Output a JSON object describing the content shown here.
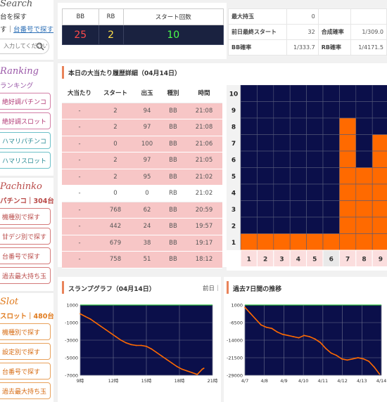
{
  "sidebar": {
    "search_title": "Search",
    "search_subtitle": "台を探す",
    "search_links": [
      "台番号で探す"
    ],
    "search_links_prefix": "す｜",
    "search_placeholder": "入力してください",
    "ranking_title": "Ranking",
    "ranking_subtitle": "ランキング",
    "ranking_buttons": [
      "絶好調パチンコ",
      "絶好調スロット",
      "ハマリパチンコ",
      "ハマリスロット"
    ],
    "pachinko_title": "Pachinko",
    "pachinko_count_label": "パチンコ｜304台",
    "pachinko_buttons": [
      "機種別で探す",
      "甘デジ別で探す",
      "台番号で探す",
      "過去最大持ち玉"
    ],
    "slot_title": "Slot",
    "slot_count_label": "スロット｜480台",
    "slot_buttons": [
      "機種別で探す",
      "設定別で探す",
      "台番号で探す",
      "過去最大持ち玉"
    ]
  },
  "summary": {
    "headers": [
      "BB",
      "RB",
      "スタート回数"
    ],
    "bb": "25",
    "rb": "2",
    "start": "10"
  },
  "stats": {
    "rows": [
      {
        "label": "最大持玉",
        "value": "0",
        "label2": "",
        "value2": ""
      },
      {
        "label": "前日最終スタート",
        "value": "32",
        "label2": "合成確率",
        "value2": "1/309.0"
      },
      {
        "label": "BB確率",
        "value": "1/333.7",
        "label2": "RB確率",
        "value2": "1/4171.5"
      }
    ]
  },
  "history": {
    "title": "本日の大当たり履歴詳細（04月14日）",
    "headers": [
      "大当たり",
      "スタート",
      "出玉",
      "種別",
      "時間"
    ],
    "rows": [
      {
        "n": "-",
        "start": "2",
        "out": "94",
        "type": "BB",
        "time": "21:08"
      },
      {
        "n": "-",
        "start": "2",
        "out": "97",
        "type": "BB",
        "time": "21:08"
      },
      {
        "n": "-",
        "start": "0",
        "out": "100",
        "type": "BB",
        "time": "21:06"
      },
      {
        "n": "-",
        "start": "2",
        "out": "97",
        "type": "BB",
        "time": "21:05"
      },
      {
        "n": "-",
        "start": "2",
        "out": "95",
        "type": "BB",
        "time": "21:02"
      },
      {
        "n": "-",
        "start": "0",
        "out": "0",
        "type": "RB",
        "time": "21:02"
      },
      {
        "n": "-",
        "start": "768",
        "out": "62",
        "type": "BB",
        "time": "20:59"
      },
      {
        "n": "-",
        "start": "442",
        "out": "24",
        "type": "BB",
        "time": "19:57"
      },
      {
        "n": "-",
        "start": "679",
        "out": "38",
        "type": "BB",
        "time": "19:17"
      },
      {
        "n": "-",
        "start": "758",
        "out": "51",
        "type": "BB",
        "time": "18:12"
      }
    ]
  },
  "bar_grid": {
    "y_labels": [
      "10",
      "9",
      "8",
      "7",
      "6",
      "5",
      "4",
      "3",
      "2",
      "1"
    ],
    "x_labels": [
      "1",
      "2",
      "3",
      "4",
      "5",
      "6",
      "7",
      "8",
      "9"
    ],
    "highlight_x": "6",
    "levels": [
      1,
      1,
      1,
      1,
      1,
      1,
      8,
      5,
      7
    ],
    "fill_color": "#ff6a00",
    "empty_color": "#0b0f4a"
  },
  "slump": {
    "title": "スランプグラフ（04月14日）",
    "nav_label": "前日｜"
  },
  "week": {
    "title": "過去7日間の推移"
  },
  "chart_data": [
    {
      "type": "line",
      "title": "スランプグラフ（04月14日）",
      "x_ticks": [
        "9時",
        "12時",
        "15時",
        "18時",
        "21時"
      ],
      "y_ticks": [
        "1000",
        "-1000",
        "-3000",
        "-5000",
        "-7000"
      ],
      "ylim": [
        -7000,
        1000
      ],
      "color": "#ff6a00",
      "x": [
        9.0,
        9.5,
        10.0,
        10.5,
        11.0,
        11.5,
        12.0,
        12.5,
        13.0,
        13.5,
        14.0,
        14.5,
        15.0,
        15.5,
        16.0,
        16.5,
        17.0,
        17.5,
        18.0,
        18.5,
        19.0,
        19.5,
        20.0,
        20.5,
        21.0,
        21.15
      ],
      "y": [
        0,
        -300,
        -600,
        -1000,
        -1400,
        -1800,
        -2200,
        -2600,
        -3000,
        -3300,
        -3500,
        -3600,
        -3600,
        -3700,
        -4000,
        -4400,
        -4800,
        -5200,
        -5600,
        -6000,
        -6300,
        -6500,
        -6700,
        -6900,
        -6300,
        -6200
      ]
    },
    {
      "type": "line",
      "title": "過去7日間の推移",
      "x_ticks": [
        "4/7",
        "4/8",
        "4/9",
        "4/10",
        "4/11",
        "4/12",
        "4/13",
        "4/14"
      ],
      "y_ticks": [
        "1000",
        "-6500",
        "-14000",
        "-21500",
        "-29000"
      ],
      "ylim": [
        -29000,
        1000
      ],
      "color": "#ff6a00",
      "x": [
        0.0,
        0.3,
        0.6,
        0.9,
        1.2,
        1.5,
        1.8,
        2.1,
        2.4,
        2.7,
        3.0,
        3.3,
        3.6,
        3.9,
        4.2,
        4.5,
        4.8,
        5.1,
        5.4,
        5.7,
        6.0,
        6.3,
        6.6,
        6.9,
        7.2,
        7.5
      ],
      "y": [
        0,
        -2500,
        -5000,
        -7500,
        -8500,
        -9000,
        -10500,
        -11500,
        -12000,
        -12500,
        -13000,
        -12000,
        -12500,
        -13500,
        -15000,
        -17500,
        -19500,
        -20500,
        -22000,
        -22500,
        -22000,
        -21500,
        -22000,
        -23000,
        -25500,
        -28500
      ]
    }
  ]
}
